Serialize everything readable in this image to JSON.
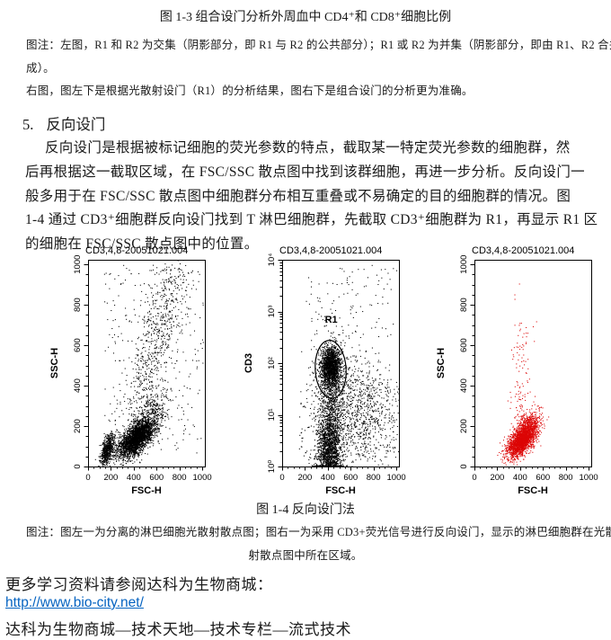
{
  "page": {
    "fig13_caption": "图 1-3 组合设门分析外周血中 CD4⁺和 CD8⁺细胞比例",
    "fig13_note": [
      "图注：左图，R1 和 R2 为交集（阴影部分，即 R1 与 R2 的公共部分）；R1 或 R2 为并集（阴影部分，即由 R1、R2 合并而",
      "成）。",
      "右图，图左下是根据光散射设门（R1）的分析结果，图右下是组合设门的分析更为准确。"
    ],
    "section": {
      "number": "5.",
      "title": "反向设门",
      "paragraph_lines": [
        "反向设门是根据被标记细胞的荧光参数的特点，截取某一特定荧光参数的细胞群，然",
        "后再根据这一截取区域，在 FSC/SSC 散点图中找到该群细胞，再进一步分析。反向设门一",
        "般多用于在 FSC/SSC 散点图中细胞群分布相互重叠或不易确定的目的细胞群的情况。图",
        "1-4 通过 CD3⁺细胞群反向设门找到 T 淋巴细胞群，先截取 CD3⁺细胞群为 R1，再显示 R1 区",
        "的细胞在 FSC/SSC 散点图中的位置。"
      ]
    },
    "fig14_caption": "图 1-4 反向设门法",
    "fig14_note": [
      "图注：图左一为分离的淋巴细胞光散射散点图；图右一为采用 CD3+荧光信号进行反向设门，显示的淋巴细胞群在光散",
      "射散点图中所在区域。"
    ],
    "footer": {
      "line1": "更多学习资料请参阅达科为生物商城：",
      "link": "http://www.bio-city.net/",
      "line2": "达科为生物商城—技术天地—技术专栏—流式技术",
      "link_color": "#0563C1"
    }
  },
  "chart_data": [
    {
      "type": "scatter",
      "title": "CD3,4,8-20051021.004",
      "xlabel": "FSC-H",
      "ylabel": "SSC-H",
      "xscale": "linear",
      "yscale": "linear",
      "xlim": [
        0,
        1023
      ],
      "ylim": [
        0,
        1023
      ],
      "xticks": [
        0,
        200,
        400,
        600,
        800,
        1000
      ],
      "yticks": [
        0,
        200,
        400,
        600,
        800,
        1000
      ],
      "minor_step": 50,
      "point_color": "#000000",
      "seed": 11,
      "legend": "whole blood light-scatter dot plot; dense lymphocyte cluster lower-left, granulocyte band rising to upper right",
      "clusters": [
        {
          "kind": "gauss",
          "n": 650,
          "cx": 165,
          "cy": 85,
          "sx": 30,
          "sy": 38,
          "corr": 0.45
        },
        {
          "kind": "gauss",
          "n": 2700,
          "cx": 420,
          "cy": 140,
          "sx": 78,
          "sy": 46,
          "corr": 0.62
        },
        {
          "kind": "gauss",
          "n": 420,
          "cx": 540,
          "cy": 250,
          "sx": 85,
          "sy": 60,
          "corr": 0.5
        },
        {
          "kind": "band",
          "n": 650,
          "x0": 430,
          "y0": 300,
          "x1": 770,
          "y1": 960,
          "sx": 85,
          "sy": 75,
          "bias": 1
        },
        {
          "kind": "uniform",
          "n": 280,
          "x0": 140,
          "x1": 1010,
          "y0": 60,
          "y1": 1000
        }
      ]
    },
    {
      "type": "scatter",
      "title": "CD3,4,8-20051021.004",
      "xlabel": "FSC-H",
      "ylabel": "CD3",
      "xscale": "linear",
      "yscale": "log",
      "xlim": [
        0,
        1023
      ],
      "ylim": [
        1,
        10000
      ],
      "xticks": [
        0,
        200,
        400,
        600,
        800,
        1000
      ],
      "yticks": [
        1,
        10,
        100,
        1000,
        10000
      ],
      "ytick_labels": [
        "10⁰",
        "10¹",
        "10²",
        "10³",
        "10⁴"
      ],
      "minor_step": 50,
      "point_color": "#000000",
      "seed": 22,
      "legend": "CD3 fluorescence vs FSC; R1 gate drawn around CD3-positive cluster",
      "gate": {
        "label": "R1",
        "cx": 425,
        "cy_log": 1.88,
        "rx": 135,
        "ry_log": 0.56,
        "label_x": 430,
        "label_y_log": 2.78
      },
      "clusters": [
        {
          "kind": "gauss",
          "n": 2300,
          "cx": 412,
          "cy": 0.32,
          "sx": 52,
          "sy": 0.5,
          "clamp": true
        },
        {
          "kind": "gauss",
          "n": 1500,
          "cx": 423,
          "cy": 1.95,
          "sx": 42,
          "sy": 0.17
        },
        {
          "kind": "gauss",
          "n": 600,
          "cx": 430,
          "cy": 1.72,
          "sx": 68,
          "sy": 0.38
        },
        {
          "kind": "gauss",
          "n": 750,
          "cx": 680,
          "cy": 1.05,
          "sx": 150,
          "sy": 0.6
        },
        {
          "kind": "uniform",
          "n": 330,
          "x0": 140,
          "x1": 1010,
          "y0": 0.05,
          "y1": 1.7
        },
        {
          "kind": "uniform",
          "n": 100,
          "x0": 200,
          "x1": 1010,
          "y0": 2.4,
          "y1": 3.9
        }
      ]
    },
    {
      "type": "scatter",
      "title": "CD3,4,8-20051021.004",
      "xlabel": "FSC-H",
      "ylabel": "SSC-H",
      "xscale": "linear",
      "yscale": "linear",
      "xlim": [
        0,
        1023
      ],
      "ylim": [
        0,
        1023
      ],
      "xticks": [
        0,
        200,
        400,
        600,
        800,
        1000
      ],
      "yticks": [
        0,
        200,
        400,
        600,
        800,
        1000
      ],
      "minor_step": 50,
      "point_color": "#dc0606",
      "seed": 33,
      "legend": "back-gated CD3+ lymphocytes shown in red on light-scatter plot",
      "clusters": [
        {
          "kind": "gauss",
          "n": 2100,
          "cx": 410,
          "cy": 130,
          "sx": 62,
          "sy": 40,
          "corr": 0.55
        },
        {
          "kind": "gauss",
          "n": 420,
          "cx": 480,
          "cy": 210,
          "sx": 55,
          "sy": 35,
          "corr": 0.3
        },
        {
          "kind": "band",
          "n": 120,
          "x0": 405,
          "y0": 270,
          "x1": 420,
          "y1": 930,
          "sx": 55,
          "sy": 45,
          "bias": 2.2
        }
      ]
    }
  ]
}
